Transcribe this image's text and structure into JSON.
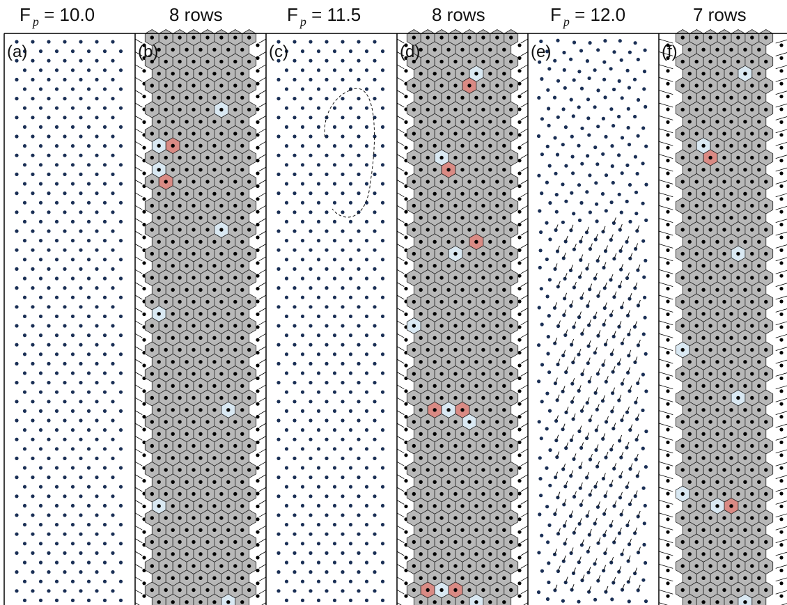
{
  "figure": {
    "panels": [
      {
        "letter": "(a)",
        "header_main": "F",
        "header_sub": "p",
        "header_tail": " = 10.0",
        "kind": "dots",
        "state": "pinned"
      },
      {
        "letter": "(b)",
        "header_main": "8 rows",
        "header_sub": "",
        "header_tail": "",
        "kind": "voronoi",
        "rows": 8
      },
      {
        "letter": "(c)",
        "header_main": "F",
        "header_sub": "p",
        "header_tail": " = 11.5",
        "kind": "dots",
        "state": "channel"
      },
      {
        "letter": "(d)",
        "header_main": "8 rows",
        "header_sub": "",
        "header_tail": "",
        "kind": "voronoi",
        "rows": 8
      },
      {
        "letter": "(e)",
        "header_main": "F",
        "header_sub": "p",
        "header_tail": " = 12.0",
        "kind": "dots",
        "state": "flowing"
      },
      {
        "letter": "(f)",
        "header_main": "7 rows",
        "header_sub": "",
        "header_tail": "",
        "kind": "voronoi",
        "rows": 7
      }
    ],
    "colors": {
      "particle": "#1a2f55",
      "particle_dark": "#000000",
      "cell_gray": "#b8b8b8",
      "cell_fivefold": "#d9e8f2",
      "cell_sevenfold": "#d98a84",
      "border": "#000000"
    }
  }
}
